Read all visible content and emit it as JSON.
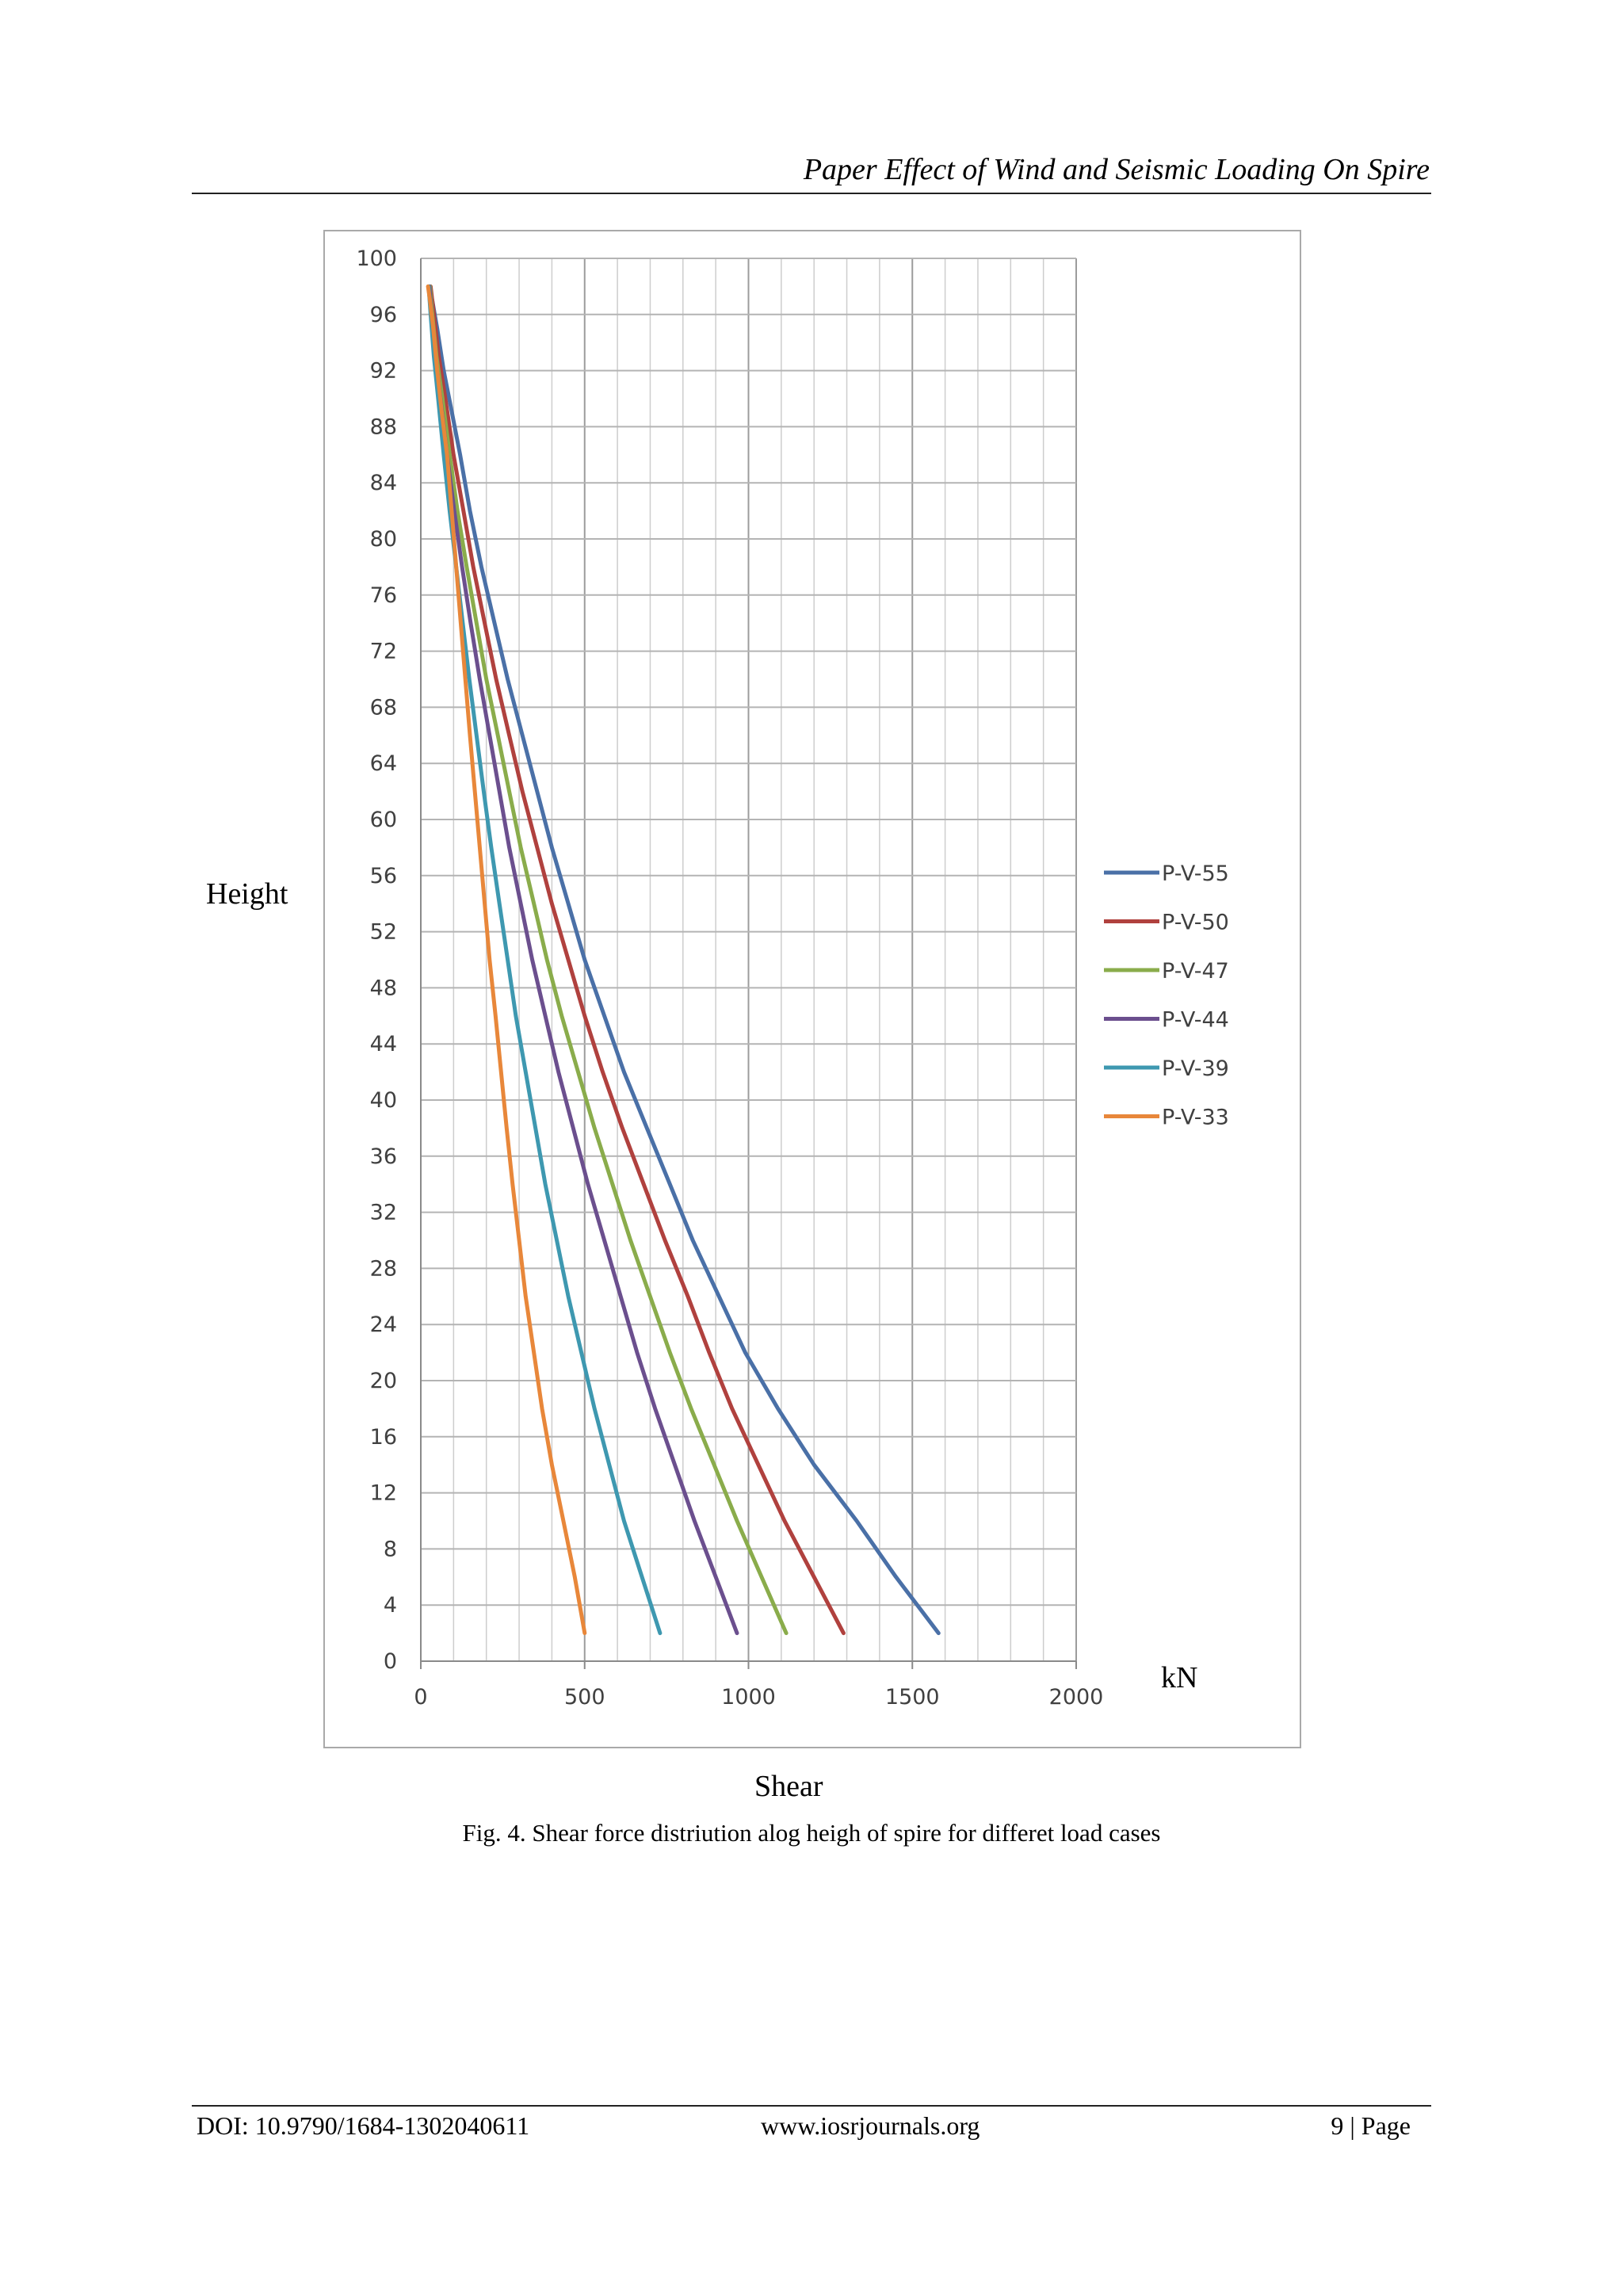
{
  "header": {
    "title": "Paper Effect of Wind and Seismic Loading On Spire"
  },
  "figure": {
    "y_side_label": "Height",
    "unit_label": "kN",
    "x_side_label": "Shear",
    "caption": "Fig. 4.  Shear force distriution alog heigh of spire for differet load cases"
  },
  "footer": {
    "doi": "DOI: 10.9790/1684-1302040611",
    "site": "www.iosrjournals.org",
    "page": "9 | Page"
  },
  "chart_data": {
    "type": "line",
    "title": "",
    "xlabel": "Shear",
    "ylabel": "Height",
    "xlim": [
      0,
      2000
    ],
    "ylim": [
      0,
      100
    ],
    "x_ticks": [
      0,
      500,
      1000,
      1500,
      2000
    ],
    "y_ticks": [
      0,
      4,
      8,
      12,
      16,
      20,
      24,
      28,
      32,
      36,
      40,
      44,
      48,
      52,
      56,
      60,
      64,
      68,
      72,
      76,
      80,
      84,
      88,
      92,
      96,
      100
    ],
    "grid": true,
    "legend_position": "right",
    "series": [
      {
        "name": "P-V-55",
        "color": "#4a70a7",
        "x": [
          1580,
          1450,
          1330,
          1200,
          1090,
          990,
          910,
          830,
          760,
          690,
          620,
          560,
          500,
          450,
          400,
          355,
          310,
          265,
          225,
          185,
          150,
          120,
          95,
          70,
          50,
          35,
          25
        ],
        "y": [
          2,
          6,
          10,
          14,
          18,
          22,
          26,
          30,
          34,
          38,
          42,
          46,
          50,
          54,
          58,
          62,
          66,
          70,
          74,
          78,
          82,
          86,
          89,
          92,
          95,
          97,
          98
        ]
      },
      {
        "name": "P-V-50",
        "color": "#b0413e",
        "x": [
          1290,
          1200,
          1110,
          1030,
          950,
          880,
          815,
          745,
          680,
          615,
          555,
          500,
          450,
          400,
          355,
          310,
          270,
          230,
          195,
          160,
          130,
          100,
          75,
          55,
          40,
          30
        ],
        "y": [
          2,
          6,
          10,
          14,
          18,
          22,
          26,
          30,
          34,
          38,
          42,
          46,
          50,
          54,
          58,
          62,
          66,
          70,
          74,
          78,
          82,
          86,
          90,
          93,
          96,
          98
        ]
      },
      {
        "name": "P-V-47",
        "color": "#8aac4b",
        "x": [
          1115,
          1040,
          965,
          895,
          825,
          760,
          700,
          640,
          585,
          530,
          480,
          430,
          385,
          345,
          305,
          270,
          235,
          200,
          170,
          140,
          112,
          88,
          66,
          48,
          35,
          28
        ],
        "y": [
          2,
          6,
          10,
          14,
          18,
          22,
          26,
          30,
          34,
          38,
          42,
          46,
          50,
          54,
          58,
          62,
          66,
          70,
          74,
          78,
          82,
          86,
          90,
          93,
          96,
          98
        ]
      },
      {
        "name": "P-V-44",
        "color": "#6b4f8e",
        "x": [
          965,
          900,
          835,
          775,
          715,
          660,
          610,
          560,
          510,
          465,
          420,
          380,
          340,
          305,
          270,
          240,
          210,
          180,
          152,
          126,
          102,
          80,
          60,
          45,
          33,
          26
        ],
        "y": [
          2,
          6,
          10,
          14,
          18,
          22,
          26,
          30,
          34,
          38,
          42,
          46,
          50,
          54,
          58,
          62,
          66,
          70,
          74,
          78,
          82,
          86,
          90,
          93,
          96,
          98
        ]
      },
      {
        "name": "P-V-39",
        "color": "#3e98b0",
        "x": [
          730,
          675,
          620,
          575,
          530,
          490,
          450,
          415,
          380,
          350,
          320,
          290,
          265,
          240,
          215,
          192,
          170,
          148,
          128,
          108,
          88,
          70,
          53,
          40,
          30,
          24
        ],
        "y": [
          2,
          6,
          10,
          14,
          18,
          22,
          26,
          30,
          34,
          38,
          42,
          46,
          50,
          54,
          58,
          62,
          66,
          70,
          74,
          78,
          82,
          86,
          90,
          93,
          96,
          98
        ]
      },
      {
        "name": "P-V-33",
        "color": "#e8873a",
        "x": [
          500,
          470,
          435,
          400,
          370,
          345,
          320,
          300,
          280,
          262,
          245,
          228,
          210,
          195,
          180,
          165,
          150,
          136,
          122,
          108,
          94,
          80,
          64,
          50,
          38,
          28,
          22
        ],
        "y": [
          2,
          6,
          10,
          14,
          18,
          22,
          26,
          30,
          34,
          38,
          42,
          46,
          50,
          54,
          58,
          62,
          66,
          70,
          74,
          78,
          82,
          86,
          89,
          92,
          95,
          97,
          98
        ]
      }
    ]
  }
}
